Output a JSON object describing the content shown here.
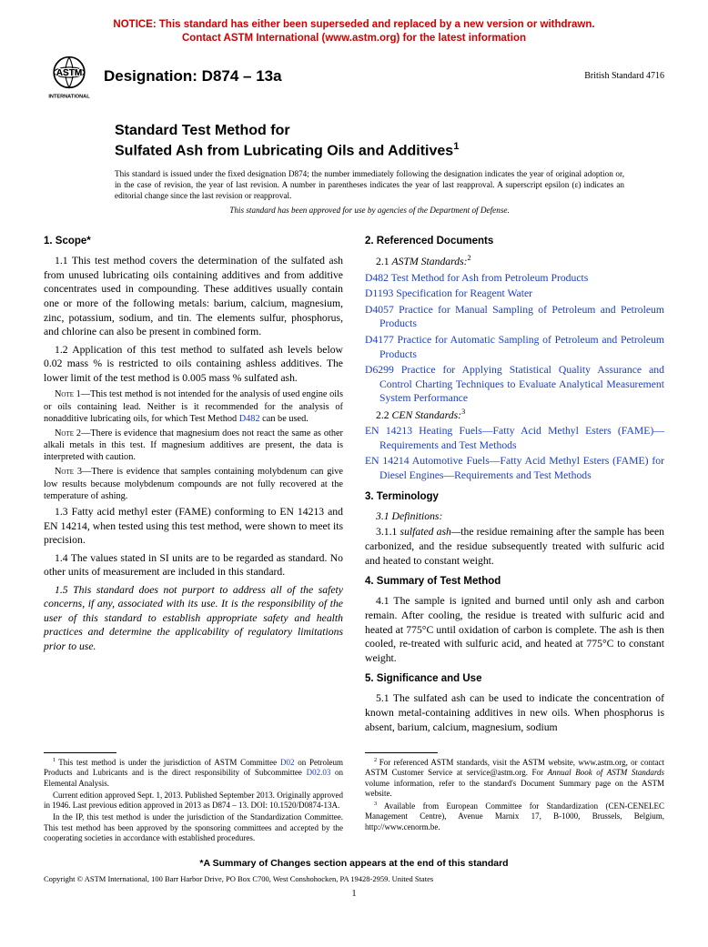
{
  "notice_line1": "NOTICE: This standard has either been superseded and replaced by a new version or withdrawn.",
  "notice_line2": "Contact ASTM International (www.astm.org) for the latest information",
  "designation_label": "Designation: D874 – 13a",
  "british_std": "British Standard 4716",
  "title_lead": "Standard Test Method for",
  "title_main": "Sulfated Ash from Lubricating Oils and Additives",
  "title_sup": "1",
  "issuance_text": "This standard is issued under the fixed designation D874; the number immediately following the designation indicates the year of original adoption or, in the case of revision, the year of last revision. A number in parentheses indicates the year of last reapproval. A superscript epsilon (ε) indicates an editorial change since the last revision or reapproval.",
  "dod_text": "This standard has been approved for use by agencies of the Department of Defense.",
  "s1_head": "1. Scope*",
  "s1_1": "1.1 This test method covers the determination of the sulfated ash from unused lubricating oils containing additives and from additive concentrates used in compounding. These additives usually contain one or more of the following metals: barium, calcium, magnesium, zinc, potassium, sodium, and tin. The elements sulfur, phosphorus, and chlorine can also be present in combined form.",
  "s1_2": "1.2 Application of this test method to sulfated ash levels below 0.02 mass % is restricted to oils containing ashless additives. The lower limit of the test method is 0.005 mass % sulfated ash.",
  "note1_label": "Note 1—",
  "note1_a": "This test method is not intended for the analysis of used engine oils or oils containing lead. Neither is it recommended for the analysis of nonadditive lubricating oils, for which Test Method ",
  "note1_link": "D482",
  "note1_b": " can be used.",
  "note2_label": "Note 2—",
  "note2": "There is evidence that magnesium does not react the same as other alkali metals in this test. If magnesium additives are present, the data is interpreted with caution.",
  "note3_label": "Note 3—",
  "note3": "There is evidence that samples containing molybdenum can give low results because molybdenum compounds are not fully recovered at the temperature of ashing.",
  "s1_3": "1.3 Fatty acid methyl ester (FAME) conforming to EN 14213 and EN 14214, when tested using this test method, were shown to meet its precision.",
  "s1_4": "1.4 The values stated in SI units are to be regarded as standard. No other units of measurement are included in this standard.",
  "s1_5": "1.5 This standard does not purport to address all of the safety concerns, if any, associated with its use. It is the responsibility of the user of this standard to establish appropriate safety and health practices and determine the applicability of regulatory limitations prior to use.",
  "s2_head": "2. Referenced Documents",
  "s2_1": "2.1 ASTM Standards:",
  "s2_1_sup": "2",
  "refs": [
    {
      "code": "D482",
      "text": " Test Method for Ash from Petroleum Products"
    },
    {
      "code": "D1193",
      "text": " Specification for Reagent Water"
    },
    {
      "code": "D4057",
      "text": " Practice for Manual Sampling of Petroleum and Petroleum Products"
    },
    {
      "code": "D4177",
      "text": " Practice for Automatic Sampling of Petroleum and Petroleum Products"
    },
    {
      "code": "D6299",
      "text": " Practice for Applying Statistical Quality Assurance and Control Charting Techniques to Evaluate Analytical Measurement System Performance"
    }
  ],
  "s2_2": "2.2 CEN Standards:",
  "s2_2_sup": "3",
  "cen_refs": [
    {
      "code": "EN 14213",
      "text": " Heating Fuels—Fatty Acid Methyl Esters (FAME)—Requirements and Test Methods"
    },
    {
      "code": "EN 14214",
      "text": " Automotive Fuels—Fatty Acid Methyl Esters (FAME) for Diesel Engines—Requirements and Test Methods"
    }
  ],
  "s3_head": "3. Terminology",
  "s3_1": "3.1 Definitions:",
  "s3_1_1_num": "3.1.1 ",
  "s3_1_1_term": "sulfated ash—",
  "s3_1_1_text": "the residue remaining after the sample has been carbonized, and the residue subsequently treated with sulfuric acid and heated to constant weight.",
  "s4_head": "4. Summary of Test Method",
  "s4_1": "4.1 The sample is ignited and burned until only ash and carbon remain. After cooling, the residue is treated with sulfuric acid and heated at 775°C until oxidation of carbon is complete. The ash is then cooled, re-treated with sulfuric acid, and heated at 775°C to constant weight.",
  "s5_head": "5. Significance and Use",
  "s5_1": "5.1 The sulfated ash can be used to indicate the concentration of known metal-containing additives in new oils. When phosphorus is absent, barium, calcium, magnesium, sodium",
  "fn1_a": "This test method is under the jurisdiction of ASTM Committee ",
  "fn1_link1": "D02",
  "fn1_b": " on Petroleum Products and Lubricants and is the direct responsibility of Subcommittee ",
  "fn1_link2": "D02.03",
  "fn1_c": " on Elemental Analysis.",
  "fn1_p2": "Current edition approved Sept. 1, 2013. Published September 2013. Originally approved in 1946. Last previous edition approved in 2013 as D874 – 13. DOI: 10.1520/D0874-13A.",
  "fn1_p3": "In the IP, this test method is under the jurisdiction of the Standardization Committee. This test method has been approved by the sponsoring committees and accepted by the cooperating societies in accordance with established procedures.",
  "fn2": "For referenced ASTM standards, visit the ASTM website, www.astm.org, or contact ASTM Customer Service at service@astm.org. For Annual Book of ASTM Standards volume information, refer to the standard's Document Summary page on the ASTM website.",
  "fn3": "Available from European Committee for Standardization (CEN-CENELEC Management Centre), Avenue Marnix 17, B-1000, Brussels, Belgium, http://www.cenorm.be.",
  "summary_note": "*A Summary of Changes section appears at the end of this standard",
  "copyright": "Copyright © ASTM International, 100 Barr Harbor Drive, PO Box C700, West Conshohocken, PA 19428-2959. United States",
  "page_num": "1",
  "colors": {
    "link": "#1a3ec8",
    "notice": "#d00000"
  }
}
